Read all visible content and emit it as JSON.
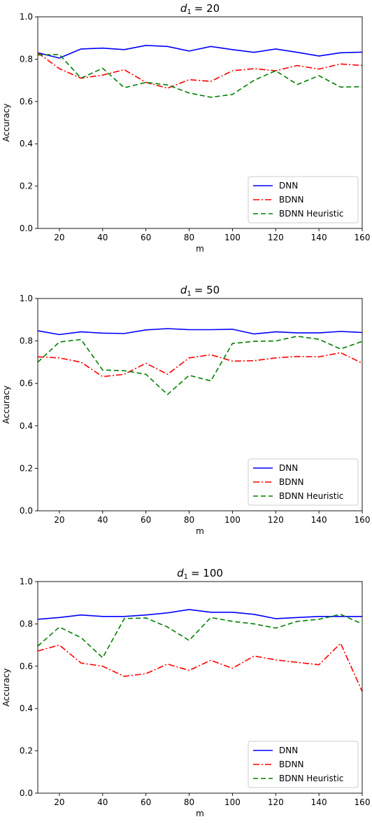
{
  "chart_data": [
    {
      "type": "line",
      "title_var": "d",
      "title_sub": "1",
      "title_value": "= 20",
      "xlabel": "m",
      "ylabel": "Accuracy",
      "xlim": [
        10,
        160
      ],
      "ylim": [
        0.0,
        1.0
      ],
      "xticks": [
        "20",
        "40",
        "60",
        "80",
        "100",
        "120",
        "140",
        "160"
      ],
      "yticks": [
        "0.0",
        "0.2",
        "0.4",
        "0.6",
        "0.8",
        "1.0"
      ],
      "legend_position": "lower right",
      "x": [
        10,
        20,
        30,
        40,
        50,
        60,
        70,
        80,
        90,
        100,
        110,
        120,
        130,
        140,
        150,
        160
      ],
      "series": [
        {
          "name": "DNN",
          "style": "solid",
          "color": "#0000ff",
          "values": [
            0.83,
            0.805,
            0.848,
            0.852,
            0.845,
            0.865,
            0.86,
            0.838,
            0.86,
            0.845,
            0.832,
            0.848,
            0.832,
            0.815,
            0.83,
            0.833
          ]
        },
        {
          "name": "BDNN",
          "style": "dashdot",
          "color": "#ff0000",
          "values": [
            0.83,
            0.755,
            0.71,
            0.725,
            0.75,
            0.69,
            0.663,
            0.703,
            0.695,
            0.745,
            0.755,
            0.745,
            0.77,
            0.753,
            0.777,
            0.77
          ]
        },
        {
          "name": "BDNN Heuristic",
          "style": "dashed",
          "color": "#008000",
          "values": [
            0.82,
            0.822,
            0.71,
            0.757,
            0.665,
            0.69,
            0.678,
            0.64,
            0.62,
            0.633,
            0.7,
            0.745,
            0.68,
            0.722,
            0.668,
            0.67
          ]
        }
      ]
    },
    {
      "type": "line",
      "title_var": "d",
      "title_sub": "1",
      "title_value": "= 50",
      "xlabel": "m",
      "ylabel": "Accuracy",
      "xlim": [
        10,
        160
      ],
      "ylim": [
        0.0,
        1.0
      ],
      "xticks": [
        "20",
        "40",
        "60",
        "80",
        "100",
        "120",
        "140",
        "160"
      ],
      "yticks": [
        "0.0",
        "0.2",
        "0.4",
        "0.6",
        "0.8",
        "1.0"
      ],
      "legend_position": "lower right",
      "x": [
        10,
        20,
        30,
        40,
        50,
        60,
        70,
        80,
        90,
        100,
        110,
        120,
        130,
        140,
        150,
        160
      ],
      "series": [
        {
          "name": "DNN",
          "style": "solid",
          "color": "#0000ff",
          "values": [
            0.848,
            0.83,
            0.843,
            0.837,
            0.835,
            0.852,
            0.858,
            0.853,
            0.853,
            0.855,
            0.833,
            0.843,
            0.838,
            0.838,
            0.845,
            0.84
          ]
        },
        {
          "name": "BDNN",
          "style": "dashdot",
          "color": "#ff0000",
          "values": [
            0.725,
            0.72,
            0.7,
            0.632,
            0.643,
            0.695,
            0.643,
            0.72,
            0.735,
            0.705,
            0.707,
            0.72,
            0.727,
            0.725,
            0.745,
            0.695
          ]
        },
        {
          "name": "BDNN Heuristic",
          "style": "dashed",
          "color": "#008000",
          "values": [
            0.7,
            0.795,
            0.807,
            0.663,
            0.66,
            0.643,
            0.548,
            0.638,
            0.612,
            0.788,
            0.798,
            0.8,
            0.822,
            0.808,
            0.762,
            0.798
          ]
        }
      ]
    },
    {
      "type": "line",
      "title_var": "d",
      "title_sub": "1",
      "title_value": "= 100",
      "xlabel": "m",
      "ylabel": "Accuracy",
      "xlim": [
        10,
        160
      ],
      "ylim": [
        0.0,
        1.0
      ],
      "xticks": [
        "20",
        "40",
        "60",
        "80",
        "100",
        "120",
        "140",
        "160"
      ],
      "yticks": [
        "0.0",
        "0.2",
        "0.4",
        "0.6",
        "0.8",
        "1.0"
      ],
      "legend_position": "lower right",
      "x": [
        10,
        20,
        30,
        40,
        50,
        60,
        70,
        80,
        90,
        100,
        110,
        120,
        130,
        140,
        150,
        160
      ],
      "series": [
        {
          "name": "DNN",
          "style": "solid",
          "color": "#0000ff",
          "values": [
            0.822,
            0.83,
            0.842,
            0.835,
            0.835,
            0.842,
            0.852,
            0.868,
            0.855,
            0.855,
            0.845,
            0.825,
            0.83,
            0.835,
            0.835,
            0.835
          ]
        },
        {
          "name": "BDNN",
          "style": "dashdot",
          "color": "#ff0000",
          "values": [
            0.672,
            0.7,
            0.615,
            0.6,
            0.552,
            0.565,
            0.61,
            0.58,
            0.628,
            0.59,
            0.648,
            0.63,
            0.618,
            0.607,
            0.708,
            0.48
          ]
        },
        {
          "name": "BDNN Heuristic",
          "style": "dashed",
          "color": "#008000",
          "values": [
            0.695,
            0.785,
            0.735,
            0.64,
            0.825,
            0.828,
            0.785,
            0.722,
            0.83,
            0.812,
            0.8,
            0.78,
            0.812,
            0.822,
            0.845,
            0.8
          ]
        }
      ]
    }
  ]
}
